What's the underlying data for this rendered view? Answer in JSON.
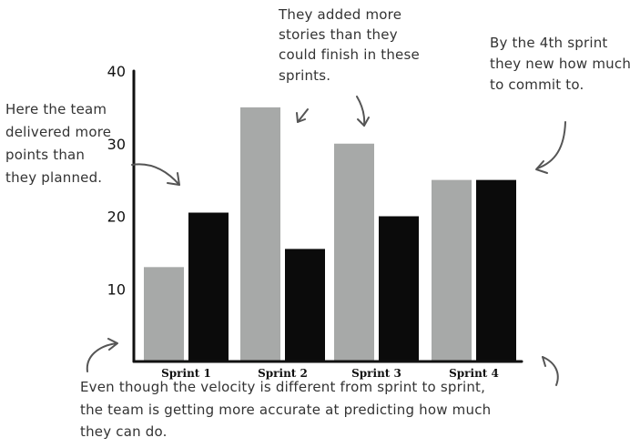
{
  "chart_data": {
    "type": "bar",
    "categories": [
      "Sprint 1",
      "Sprint 2",
      "Sprint 3",
      "Sprint 4"
    ],
    "series": [
      {
        "color": "#a7a9a8",
        "values": [
          13,
          35,
          30,
          25
        ]
      },
      {
        "color": "#0b0b0b",
        "values": [
          20.5,
          15.5,
          20,
          25
        ]
      }
    ],
    "yticks": [
      10,
      20,
      30,
      40
    ],
    "ylim": [
      0,
      40
    ],
    "grid": false,
    "legend": "none",
    "title": "",
    "xlabel": "",
    "ylabel": ""
  },
  "annotations": {
    "planned_more": [
      "Here the team",
      "delivered more",
      "points than",
      "they planned."
    ],
    "added_more": [
      "They added more",
      "stories than they",
      "could finish in these",
      "sprints."
    ],
    "fourth_sprint": [
      "By the 4th sprint",
      "they new how much",
      "to commit to."
    ],
    "summary": [
      "Even though the velocity is different from sprint to sprint,",
      "the team is getting more accurate at predicting how much",
      "they can do."
    ]
  },
  "colors": {
    "axis": "#111111",
    "annotation_text": "#333333",
    "arrow": "#555555"
  }
}
